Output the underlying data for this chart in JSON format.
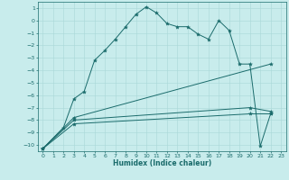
{
  "xlabel": "Humidex (Indice chaleur)",
  "background_color": "#c8ecec",
  "grid_color": "#a8d8d8",
  "line_color": "#1a6b6b",
  "xlim": [
    -0.5,
    23.5
  ],
  "ylim": [
    -10.5,
    1.5
  ],
  "yticks": [
    1,
    0,
    -1,
    -2,
    -3,
    -4,
    -5,
    -6,
    -7,
    -8,
    -9,
    -10
  ],
  "xticks": [
    0,
    1,
    2,
    3,
    4,
    5,
    6,
    7,
    8,
    9,
    10,
    11,
    12,
    13,
    14,
    15,
    16,
    17,
    18,
    19,
    20,
    21,
    22,
    23
  ],
  "curve1_x": [
    0,
    2,
    3,
    4,
    5,
    6,
    7,
    8,
    9,
    10,
    11,
    12,
    13,
    14,
    15,
    16,
    17,
    18,
    19,
    20,
    21,
    22
  ],
  "curve1_y": [
    -10.3,
    -8.6,
    -6.3,
    -5.7,
    -3.2,
    -2.4,
    -1.5,
    -0.5,
    0.5,
    1.1,
    0.6,
    -0.25,
    -0.5,
    -0.5,
    -1.1,
    -1.5,
    0.0,
    -0.8,
    -3.5,
    -3.5,
    -10.1,
    -7.5
  ],
  "curve2_x": [
    0,
    3,
    22
  ],
  "curve2_y": [
    -10.3,
    -7.8,
    -3.5
  ],
  "curve3_x": [
    0,
    3,
    20,
    22
  ],
  "curve3_y": [
    -10.3,
    -8.0,
    -7.0,
    -7.3
  ],
  "curve4_x": [
    0,
    3,
    20,
    22
  ],
  "curve4_y": [
    -10.3,
    -8.3,
    -7.5,
    -7.5
  ]
}
